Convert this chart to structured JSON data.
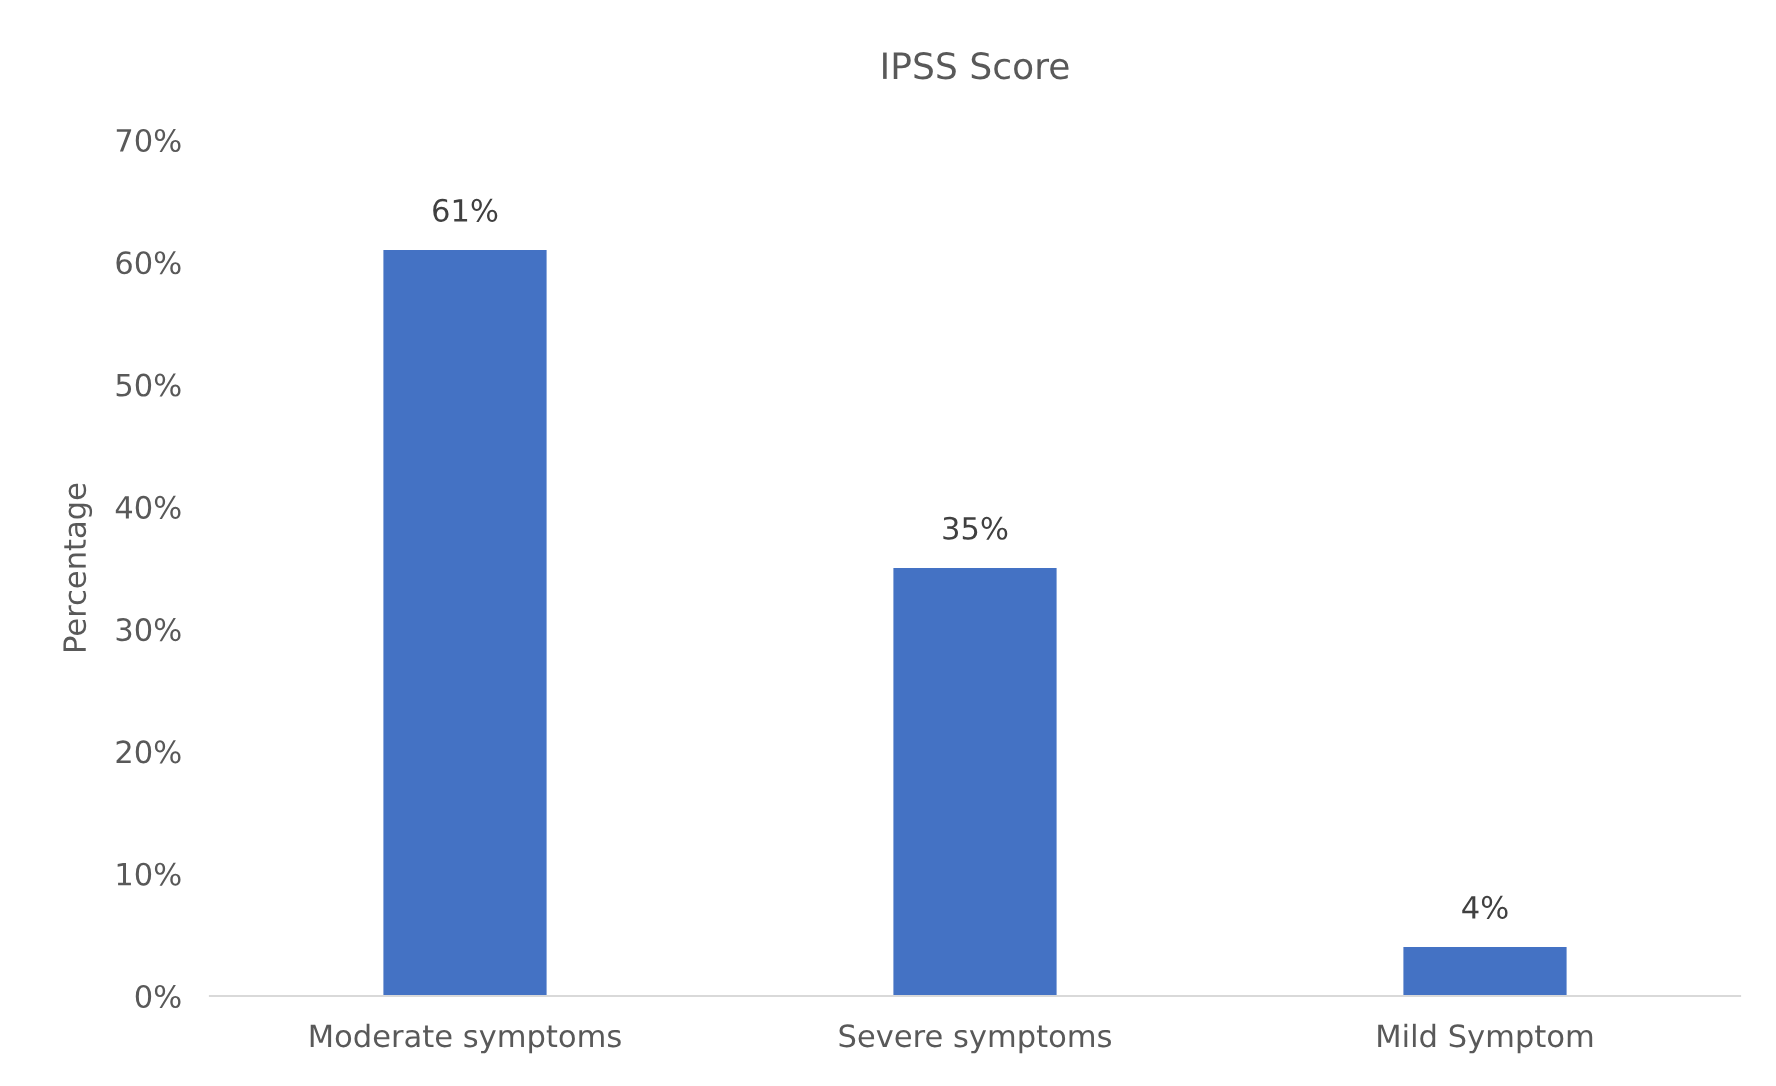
{
  "chart_data": {
    "type": "bar",
    "title": "IPSS Score",
    "ylabel": "Percentage",
    "categories": [
      "Moderate symptoms",
      "Severe symptoms",
      "Mild Symptom"
    ],
    "values": [
      61,
      35,
      4
    ],
    "color": "#4472c4",
    "value_labels": [
      "61%",
      "35%",
      "4%"
    ],
    "ylim": [
      0,
      70
    ],
    "yticks": [
      {
        "value": 0,
        "label": "0%"
      },
      {
        "value": 10,
        "label": "10%"
      },
      {
        "value": 20,
        "label": "20%"
      },
      {
        "value": 30,
        "label": "30%"
      },
      {
        "value": 40,
        "label": "40%"
      },
      {
        "value": 50,
        "label": "50%"
      },
      {
        "value": 60,
        "label": "60%"
      },
      {
        "value": 70,
        "label": "70%"
      }
    ],
    "grid": false,
    "legend": false
  }
}
